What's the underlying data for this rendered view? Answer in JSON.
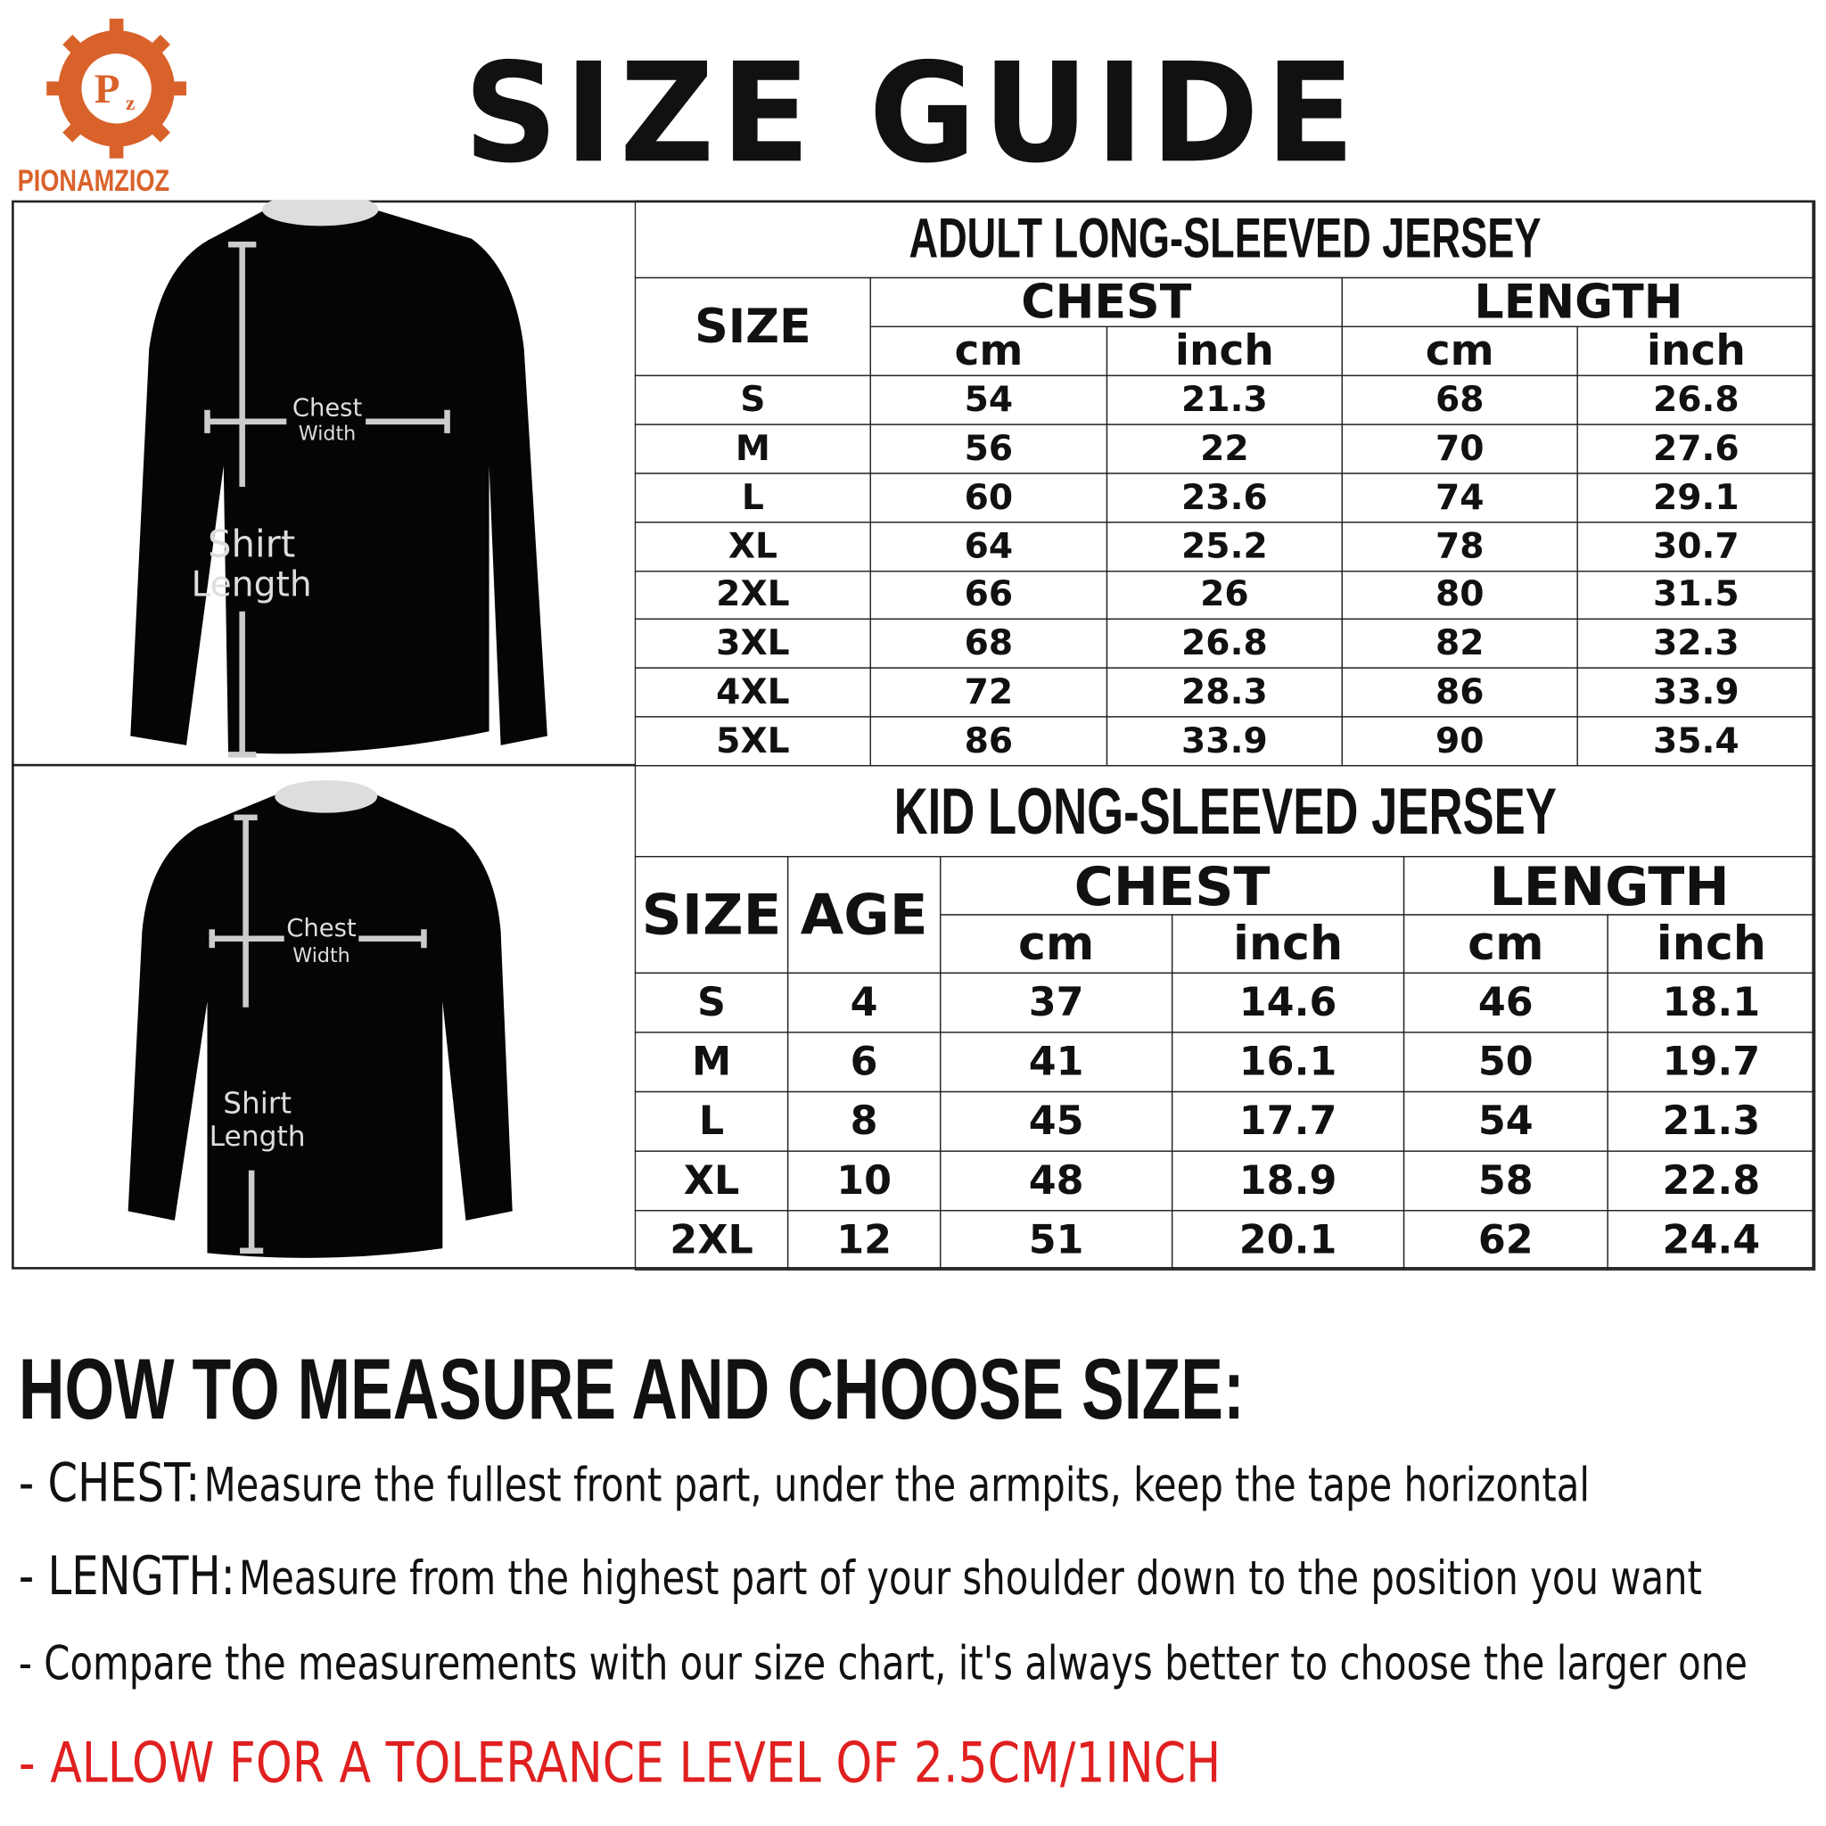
{
  "logo": {
    "initials": [
      "P",
      "z"
    ],
    "name": "PIONAMZIOZ"
  },
  "title": "SIZE GUIDE",
  "adult": {
    "title": "ADULT LONG-SLEEVED JERSEY",
    "headers": [
      "SIZE",
      "CHEST",
      "LENGTH"
    ],
    "units": [
      "cm",
      "inch",
      "cm",
      "inch"
    ],
    "rows": [
      [
        "S",
        "54",
        "21.3",
        "68",
        "26.8"
      ],
      [
        "M",
        "56",
        "22",
        "70",
        "27.6"
      ],
      [
        "L",
        "60",
        "23.6",
        "74",
        "29.1"
      ],
      [
        "XL",
        "64",
        "25.2",
        "78",
        "30.7"
      ],
      [
        "2XL",
        "66",
        "26",
        "80",
        "31.5"
      ],
      [
        "3XL",
        "68",
        "26.8",
        "82",
        "32.3"
      ],
      [
        "4XL",
        "72",
        "28.3",
        "86",
        "33.9"
      ],
      [
        "5XL",
        "86",
        "33.9",
        "90",
        "35.4"
      ]
    ]
  },
  "adult_figure": {
    "chest": [
      "Chest",
      "Width"
    ],
    "length": [
      "Shirt",
      "Length"
    ]
  },
  "kid": {
    "title": "KID LONG-SLEEVED JERSEY",
    "headers": [
      "SIZE",
      "AGE",
      "CHEST",
      "LENGTH"
    ],
    "units": [
      "cm",
      "inch",
      "cm",
      "inch"
    ],
    "rows": [
      [
        "S",
        "4",
        "37",
        "14.6",
        "46",
        "18.1"
      ],
      [
        "M",
        "6",
        "41",
        "16.1",
        "50",
        "19.7"
      ],
      [
        "L",
        "8",
        "45",
        "17.7",
        "54",
        "21.3"
      ],
      [
        "XL",
        "10",
        "48",
        "18.9",
        "58",
        "22.8"
      ],
      [
        "2XL",
        "12",
        "51",
        "20.1",
        "62",
        "24.4"
      ]
    ]
  },
  "kid_figure": {
    "chest": [
      "Chest",
      "Width"
    ],
    "length": [
      "Shirt",
      "Length"
    ]
  },
  "howto": {
    "title": "HOW TO MEASURE AND CHOOSE SIZE:",
    "items": [
      {
        "lead": "- CHEST:",
        "text": "Measure the fullest front part, under the armpits, keep the tape horizontal"
      },
      {
        "lead": "- LENGTH:",
        "text": "Measure from the highest part of your shoulder down to the position you want"
      },
      {
        "text": "- Compare the measurements with our size chart, it's always better to choose the larger one"
      }
    ],
    "warning": "- ALLOW FOR A TOLERANCE LEVEL OF 2.5CM/1INCH"
  }
}
